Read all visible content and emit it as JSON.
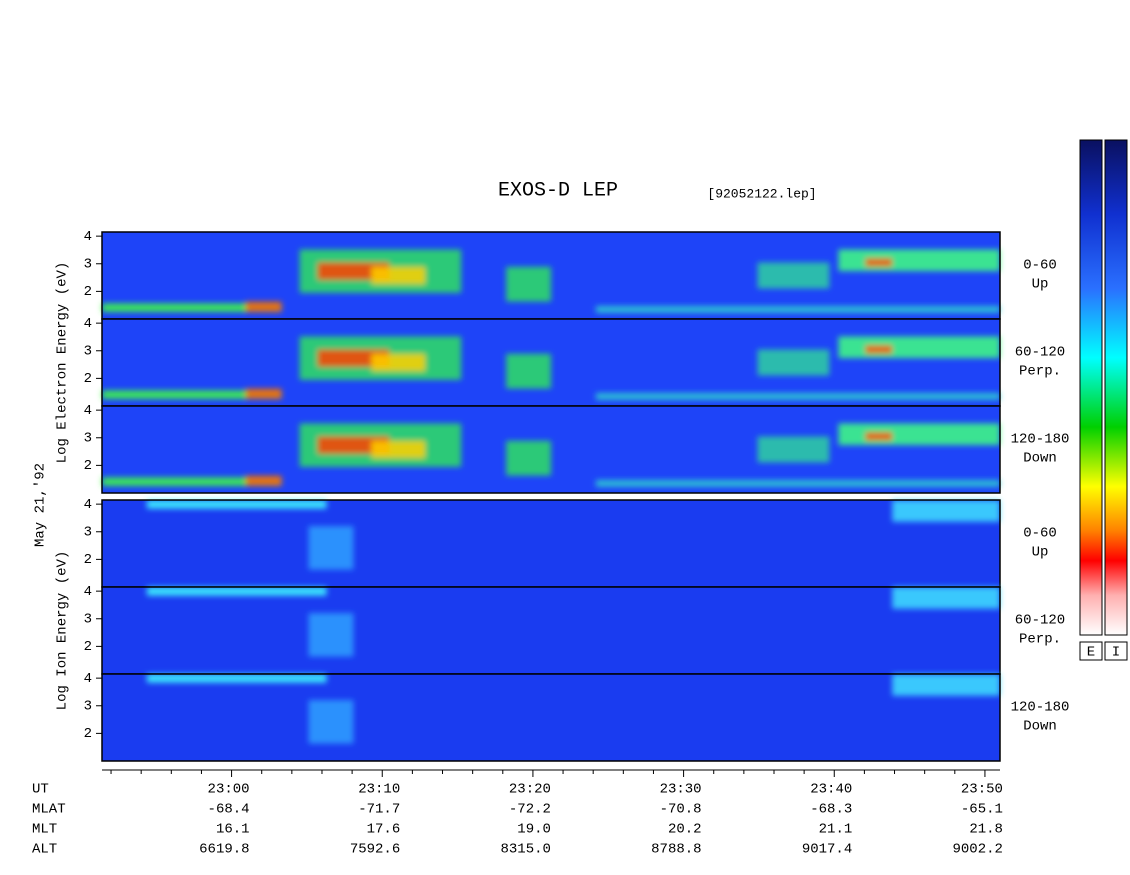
{
  "title": "EXOS-D LEP",
  "file": "[92052122.lep]",
  "date": "May 21,'92",
  "colorbar_labels": [
    "E",
    "I"
  ],
  "groups": [
    {
      "label": "Log Electron Energy (eV)",
      "panels": [
        {
          "range": "0-60",
          "direction": "Up",
          "yticks": [
            2,
            3,
            4
          ],
          "ylim": [
            1,
            4.15
          ]
        },
        {
          "range": "60-120",
          "direction": "Perp.",
          "yticks": [
            2,
            3,
            4
          ],
          "ylim": [
            1,
            4.15
          ]
        },
        {
          "range": "120-180",
          "direction": "Down",
          "yticks": [
            2,
            3,
            4
          ],
          "ylim": [
            1,
            4.15
          ]
        }
      ]
    },
    {
      "label": "Log Ion Energy (eV)",
      "panels": [
        {
          "range": "0-60",
          "direction": "Up",
          "yticks": [
            2,
            3,
            4
          ],
          "ylim": [
            1,
            4.15
          ]
        },
        {
          "range": "60-120",
          "direction": "Perp.",
          "yticks": [
            2,
            3,
            4
          ],
          "ylim": [
            1,
            4.15
          ]
        },
        {
          "range": "120-180",
          "direction": "Down",
          "yticks": [
            2,
            3,
            4
          ],
          "ylim": [
            1,
            4.15
          ]
        }
      ]
    }
  ],
  "xlim": [
    1371.4,
    1431
  ],
  "xticks": [
    {
      "value": 1380,
      "label": "23:00"
    },
    {
      "value": 1390,
      "label": "23:10"
    },
    {
      "value": 1400,
      "label": "23:20"
    },
    {
      "value": 1410,
      "label": "23:30"
    },
    {
      "value": 1420,
      "label": "23:40"
    },
    {
      "value": 1430,
      "label": "23:50"
    }
  ],
  "xminorticks": [
    1372,
    1374,
    1376,
    1378,
    1382,
    1384,
    1386,
    1388,
    1392,
    1394,
    1396,
    1398,
    1402,
    1404,
    1406,
    1408,
    1412,
    1414,
    1416,
    1418,
    1422,
    1424,
    1426,
    1428
  ],
  "ephemeris": {
    "labels": [
      "UT",
      "MLAT",
      "MLT",
      "ALT"
    ],
    "rows": [
      [
        "-68.4",
        "-71.7",
        "-72.2",
        "-70.8",
        "-68.3",
        "-65.1"
      ],
      [
        "16.1",
        "17.6",
        "19.0",
        "20.2",
        "21.1",
        "21.8"
      ],
      [
        "6619.8",
        "7592.6",
        "8315.0",
        "8788.8",
        "9017.4",
        "9002.2"
      ]
    ]
  }
}
